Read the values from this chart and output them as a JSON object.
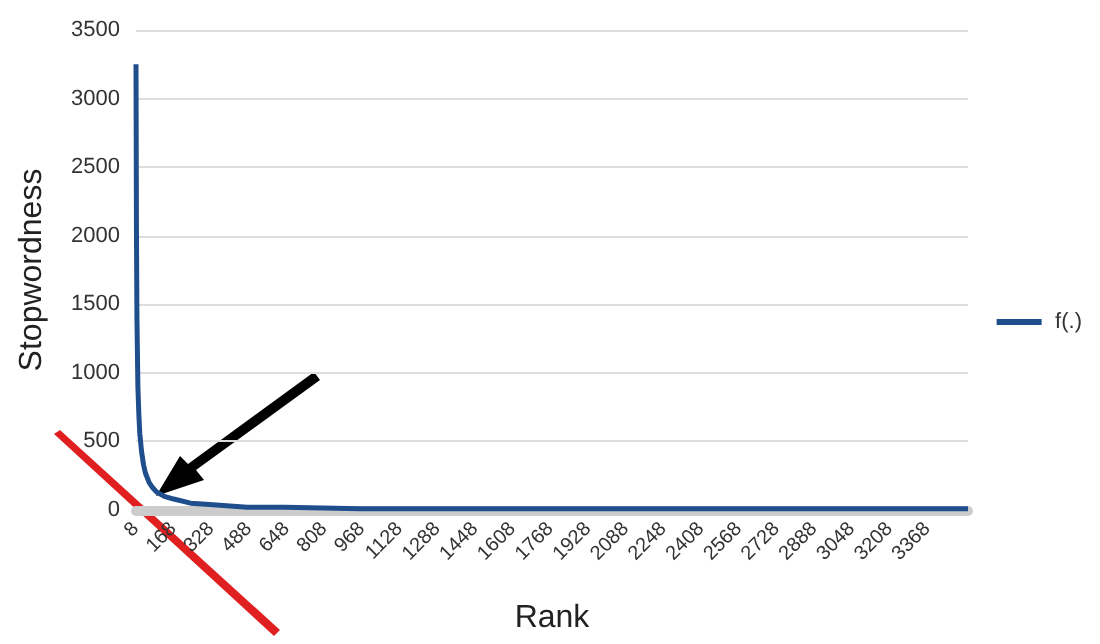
{
  "chart_data": {
    "type": "line",
    "xlabel": "Rank",
    "ylabel": "Stopwordness",
    "x": [
      8,
      10,
      12,
      16,
      20,
      24,
      32,
      40,
      48,
      64,
      80,
      96,
      128,
      168,
      240,
      320,
      480,
      640,
      960,
      1280,
      1600,
      2400,
      3540
    ],
    "series": [
      {
        "name": "f(.)",
        "color": "#1f4e8c",
        "values": [
          3250,
          2000,
          1400,
          900,
          700,
          560,
          420,
          330,
          270,
          200,
          160,
          130,
          100,
          80,
          50,
          40,
          20,
          20,
          10,
          10,
          10,
          10,
          10
        ]
      }
    ],
    "xlim": [
      8,
      3540
    ],
    "xticks": [
      8,
      168,
      328,
      488,
      648,
      808,
      968,
      1128,
      1288,
      1448,
      1608,
      1768,
      1928,
      2088,
      2248,
      2408,
      2568,
      2728,
      2888,
      3048,
      3208,
      3368
    ],
    "ylim": [
      0,
      3500
    ],
    "yticks": [
      0,
      500,
      1000,
      1500,
      2000,
      2500,
      3000,
      3500
    ],
    "grid": "y",
    "legend": "right",
    "marker": "none",
    "line_style": "solid"
  }
}
